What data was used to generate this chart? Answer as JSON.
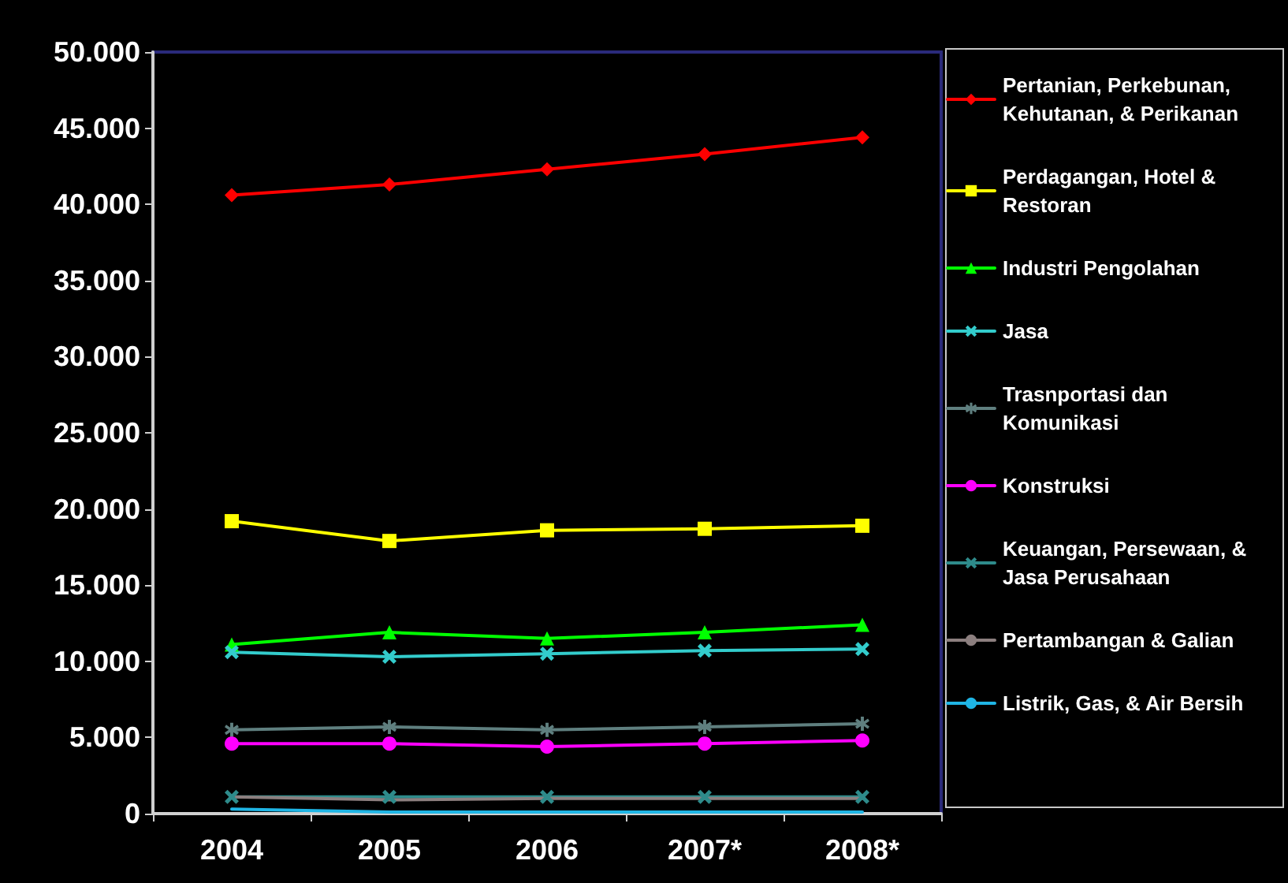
{
  "chart_data": {
    "type": "line",
    "categories": [
      "2004",
      "2005",
      "2006",
      "2007*",
      "2008*"
    ],
    "series": [
      {
        "name": "Pertanian, Perkebunan, Kehutanan, & Perikanan",
        "color": "#ff0000",
        "marker": "diamond",
        "values": [
          40600,
          41300,
          42300,
          43300,
          44400
        ]
      },
      {
        "name": "Perdagangan, Hotel & Restoran",
        "color": "#ffff00",
        "marker": "square",
        "values": [
          19200,
          17900,
          18600,
          18700,
          18900
        ]
      },
      {
        "name": "Industri Pengolahan",
        "color": "#00ff00",
        "marker": "triangle",
        "values": [
          11100,
          11900,
          11500,
          11900,
          12400
        ]
      },
      {
        "name": "Jasa",
        "color": "#33cccc",
        "marker": "cross",
        "values": [
          10600,
          10300,
          10500,
          10700,
          10800
        ]
      },
      {
        "name": "Trasnportasi dan Komunikasi",
        "color": "#5f7f7f",
        "marker": "star",
        "values": [
          5500,
          5700,
          5500,
          5700,
          5900
        ]
      },
      {
        "name": "Konstruksi",
        "color": "#ff00ff",
        "marker": "circle",
        "values": [
          4600,
          4600,
          4400,
          4600,
          4800
        ]
      },
      {
        "name": "Keuangan, Persewaan, & Jasa Perusahaan",
        "color": "#2e8b8b",
        "marker": "cross",
        "values": [
          1100,
          1100,
          1100,
          1100,
          1100
        ]
      },
      {
        "name": "Pertambangan & Galian",
        "color": "#8c7f7f",
        "marker": "none",
        "values": [
          1100,
          900,
          1000,
          1000,
          1000
        ]
      },
      {
        "name": "Listrik, Gas, & Air Bersih",
        "color": "#1fb5e5",
        "marker": "none",
        "values": [
          300,
          100,
          100,
          100,
          100
        ]
      }
    ],
    "ylim": [
      0,
      50000
    ],
    "yticks": [
      {
        "value": 0,
        "label": "0"
      },
      {
        "value": 5000,
        "label": "5.000"
      },
      {
        "value": 10000,
        "label": "10.000"
      },
      {
        "value": 15000,
        "label": "15.000"
      },
      {
        "value": 20000,
        "label": "20.000"
      },
      {
        "value": 25000,
        "label": "25.000"
      },
      {
        "value": 30000,
        "label": "30.000"
      },
      {
        "value": 35000,
        "label": "35.000"
      },
      {
        "value": 40000,
        "label": "40.000"
      },
      {
        "value": 45000,
        "label": "45.000"
      },
      {
        "value": 50000,
        "label": "50.000"
      }
    ],
    "grid": false,
    "legend": "right",
    "line_style": "solid"
  }
}
